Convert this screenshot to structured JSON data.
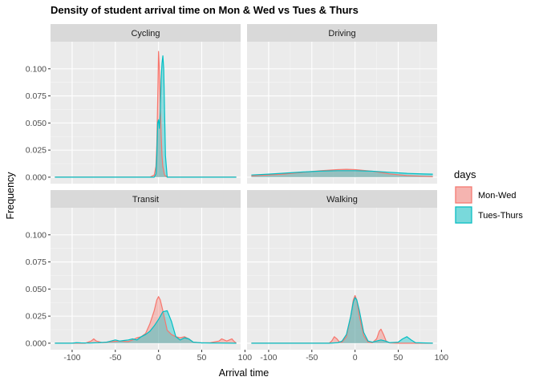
{
  "chart_data": {
    "type": "area",
    "title": "Density of student arrival time on Mon & Wed vs Tues & Thurs",
    "xlabel": "Arrival time",
    "ylabel": "Frequency",
    "xlim": [
      -125,
      95
    ],
    "ylim": [
      -0.006,
      0.125
    ],
    "x_ticks": [
      -100,
      -50,
      0,
      50,
      100
    ],
    "x_tick_labels": [
      "-100",
      "-50",
      "0",
      "50",
      "100"
    ],
    "y_ticks": [
      0,
      0.025,
      0.05,
      0.075,
      0.1
    ],
    "y_tick_labels": [
      "0.000",
      "0.025",
      "0.050",
      "0.075",
      "0.100"
    ],
    "grid": true,
    "legend": {
      "title": "days",
      "position": "right",
      "entries": [
        {
          "label": "Mon-Wed",
          "line_color": "#F8766D",
          "fill_color": "#F8766D"
        },
        {
          "label": "Tues-Thurs",
          "line_color": "#00BFC4",
          "fill_color": "#00BFC4"
        }
      ]
    },
    "facets": [
      {
        "label": "Cycling",
        "series": [
          {
            "name": "Mon-Wed",
            "x": [
              -120,
              -10,
              -5,
              -3,
              -2,
              -1,
              0,
              1,
              2,
              3,
              4,
              5,
              7,
              10,
              90
            ],
            "y": [
              0,
              0,
              0.002,
              0.01,
              0.03,
              0.07,
              0.116,
              0.1,
              0.07,
              0.04,
              0.02,
              0.01,
              0.002,
              0,
              0
            ]
          },
          {
            "name": "Tues-Thurs",
            "x": [
              -120,
              -5,
              -3,
              -2,
              -1,
              0,
              1,
              2,
              3,
              4,
              5,
              6,
              7,
              8,
              10,
              90
            ],
            "y": [
              0,
              0,
              0.003,
              0.02,
              0.05,
              0.053,
              0.045,
              0.06,
              0.09,
              0.105,
              0.112,
              0.1,
              0.06,
              0.02,
              0,
              0
            ]
          }
        ]
      },
      {
        "label": "Driving",
        "series": [
          {
            "name": "Mon-Wed",
            "x": [
              -120,
              -100,
              -80,
              -60,
              -40,
              -20,
              -10,
              0,
              20,
              40,
              60,
              80,
              90
            ],
            "y": [
              0.0012,
              0.002,
              0.003,
              0.0045,
              0.006,
              0.007,
              0.0072,
              0.007,
              0.0055,
              0.003,
              0.0015,
              0.0008,
              0.0005
            ]
          },
          {
            "name": "Tues-Thurs",
            "x": [
              -120,
              -100,
              -80,
              -60,
              -40,
              -20,
              0,
              20,
              40,
              60,
              80,
              90
            ],
            "y": [
              0.002,
              0.0028,
              0.0038,
              0.0048,
              0.0056,
              0.006,
              0.006,
              0.0055,
              0.0045,
              0.0035,
              0.003,
              0.0028
            ]
          }
        ]
      },
      {
        "label": "Transit",
        "series": [
          {
            "name": "Mon-Wed",
            "x": [
              -120,
              -85,
              -78,
              -75,
              -72,
              -65,
              -55,
              -45,
              -35,
              -30,
              -25,
              -20,
              -15,
              -10,
              -5,
              -2,
              0,
              2,
              5,
              10,
              15,
              20,
              25,
              30,
              35,
              40,
              50,
              60,
              70,
              73,
              76,
              79,
              82,
              85,
              87,
              90
            ],
            "y": [
              0,
              0,
              0.002,
              0.004,
              0.002,
              0.0005,
              0.0015,
              0.002,
              0.0015,
              0.003,
              0.005,
              0.006,
              0.009,
              0.018,
              0.03,
              0.04,
              0.043,
              0.04,
              0.03,
              0.012,
              0.008,
              0.006,
              0.005,
              0.006,
              0.004,
              0.001,
              0.0003,
              0.0005,
              0.002,
              0.004,
              0.003,
              0.002,
              0.003,
              0.004,
              0.002,
              0
            ]
          },
          {
            "name": "Tues-Thurs",
            "x": [
              -120,
              -100,
              -95,
              -90,
              -80,
              -70,
              -60,
              -55,
              -50,
              -45,
              -40,
              -35,
              -30,
              -25,
              -20,
              -15,
              -10,
              -5,
              0,
              5,
              10,
              15,
              20,
              25,
              30,
              35,
              40,
              50,
              60,
              70,
              80,
              90
            ],
            "y": [
              0,
              0,
              0.0005,
              0.0003,
              0.0002,
              0.0005,
              0.001,
              0.002,
              0.003,
              0.002,
              0.0025,
              0.003,
              0.004,
              0.003,
              0.006,
              0.008,
              0.011,
              0.016,
              0.022,
              0.029,
              0.03,
              0.02,
              0.006,
              0.003,
              0.005,
              0.004,
              0.001,
              0.0003,
              0.0002,
              0.0002,
              0.0001,
              0
            ]
          }
        ]
      },
      {
        "label": "Walking",
        "series": [
          {
            "name": "Mon-Wed",
            "x": [
              -120,
              -30,
              -27,
              -24,
              -21,
              -18,
              -15,
              -10,
              -5,
              -2,
              0,
              2,
              5,
              10,
              15,
              20,
              25,
              28,
              30,
              33,
              36,
              40,
              50,
              60,
              70,
              90
            ],
            "y": [
              0,
              0,
              0.002,
              0.006,
              0.004,
              0.001,
              0.001,
              0.006,
              0.025,
              0.04,
              0.044,
              0.04,
              0.025,
              0.007,
              0.001,
              0.0005,
              0.004,
              0.011,
              0.013,
              0.008,
              0.002,
              0.0003,
              0,
              0,
              0,
              0
            ]
          },
          {
            "name": "Tues-Thurs",
            "x": [
              -120,
              -30,
              -20,
              -15,
              -10,
              -5,
              -2,
              0,
              2,
              5,
              10,
              15,
              20,
              25,
              30,
              35,
              40,
              50,
              55,
              60,
              65,
              70,
              90
            ],
            "y": [
              0,
              0,
              0.0005,
              0.002,
              0.008,
              0.025,
              0.038,
              0.042,
              0.04,
              0.03,
              0.01,
              0.002,
              0.001,
              0.002,
              0.003,
              0.002,
              0.0005,
              0.001,
              0.004,
              0.006,
              0.003,
              0.0005,
              0
            ]
          }
        ]
      }
    ]
  }
}
